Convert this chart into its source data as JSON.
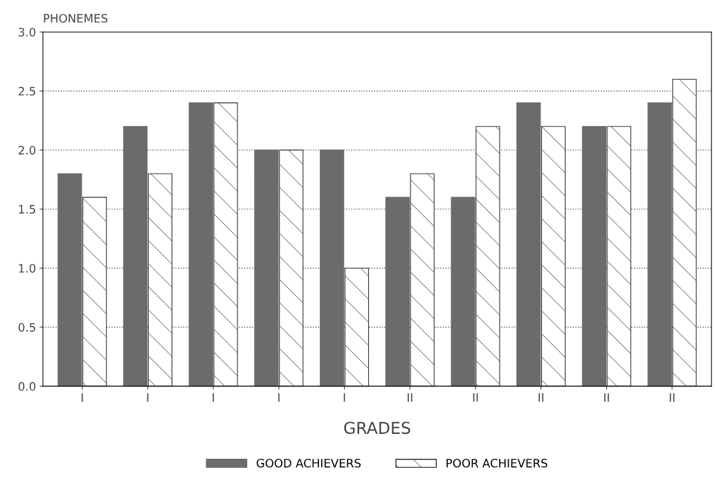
{
  "chart_data": {
    "type": "bar",
    "ylabel": "PHONEMES",
    "xlabel": "GRADES",
    "categories": [
      "I",
      "I",
      "I",
      "I",
      "I",
      "II",
      "II",
      "II",
      "II",
      "II"
    ],
    "series": [
      {
        "name": "GOOD ACHIEVERS",
        "color": "#6b6b6b",
        "values": [
          1.8,
          2.2,
          2.4,
          2.0,
          2.0,
          1.6,
          1.6,
          2.4,
          2.2,
          2.4
        ]
      },
      {
        "name": "POOR ACHIEVERS",
        "color": "#333333",
        "values": [
          1.6,
          1.8,
          2.4,
          2.0,
          1.0,
          1.8,
          2.2,
          2.2,
          2.2,
          2.6
        ]
      }
    ],
    "ylim": [
      0,
      3
    ],
    "yticks": [
      {
        "value": 0,
        "label": "0.0"
      },
      {
        "value": 0.5,
        "label": "0.5"
      },
      {
        "value": 1,
        "label": "1.0"
      },
      {
        "value": 1.5,
        "label": "1.5"
      },
      {
        "value": 2,
        "label": "2.0"
      },
      {
        "value": 2.5,
        "label": "2.5"
      },
      {
        "value": 3,
        "label": "3.0"
      }
    ],
    "grid": "y",
    "legend": "bottom"
  }
}
